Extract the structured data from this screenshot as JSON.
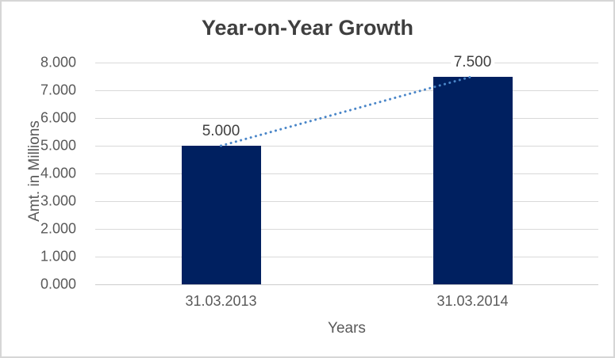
{
  "chart_data": {
    "type": "bar",
    "title": "Year-on-Year Growth",
    "categories": [
      "31.03.2013",
      "31.03.2014"
    ],
    "values": [
      5.0,
      7.5
    ],
    "value_labels": [
      "5.000",
      "7.500"
    ],
    "xlabel": "Years",
    "ylabel": "Amt. in Millions",
    "ylim": [
      0,
      8
    ],
    "y_tick_step": 1,
    "y_tick_labels": [
      "0.000",
      "1.000",
      "2.000",
      "3.000",
      "4.000",
      "5.000",
      "6.000",
      "7.000",
      "8.000"
    ],
    "grid": true,
    "legend": false,
    "bar_color": "#002060",
    "trendline": {
      "type": "linear",
      "style": "dotted",
      "color": "#4a86c8"
    },
    "colors": {
      "title_text": "#3f3f3f",
      "axis_text": "#595959",
      "gridline": "#d9d9d9",
      "background": "#ffffff",
      "border": "#d6d6d6"
    }
  }
}
